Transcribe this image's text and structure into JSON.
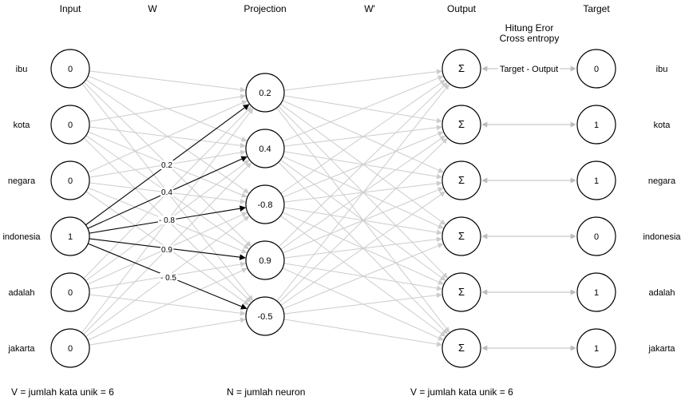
{
  "headers": {
    "input": "Input",
    "w": "W",
    "projection": "Projection",
    "w_prime": "W'",
    "output": "Output",
    "error_line1": "Hitung Eror",
    "error_line2": "Cross entropy",
    "target": "Target"
  },
  "words": [
    "ibu",
    "kota",
    "negara",
    "indonesia",
    "adalah",
    "jakarta"
  ],
  "input_values": [
    "0",
    "0",
    "0",
    "1",
    "0",
    "0"
  ],
  "projection_values": [
    "0.2",
    "0.4",
    "-0.8",
    "0.9",
    "-0.5"
  ],
  "output_symbol": "Σ",
  "target_values": [
    "0",
    "1",
    "1",
    "0",
    "1",
    "1"
  ],
  "active_input_index": 3,
  "weight_labels": [
    "0.2",
    "0.4",
    "- 0.8",
    "0.9",
    "- 0.5"
  ],
  "diff_label": "Target - Output",
  "footer": {
    "left": "V = jumlah kata unik = 6",
    "middle": "N = jumlah neuron",
    "right": "V = jumlah kata unik = 6"
  }
}
